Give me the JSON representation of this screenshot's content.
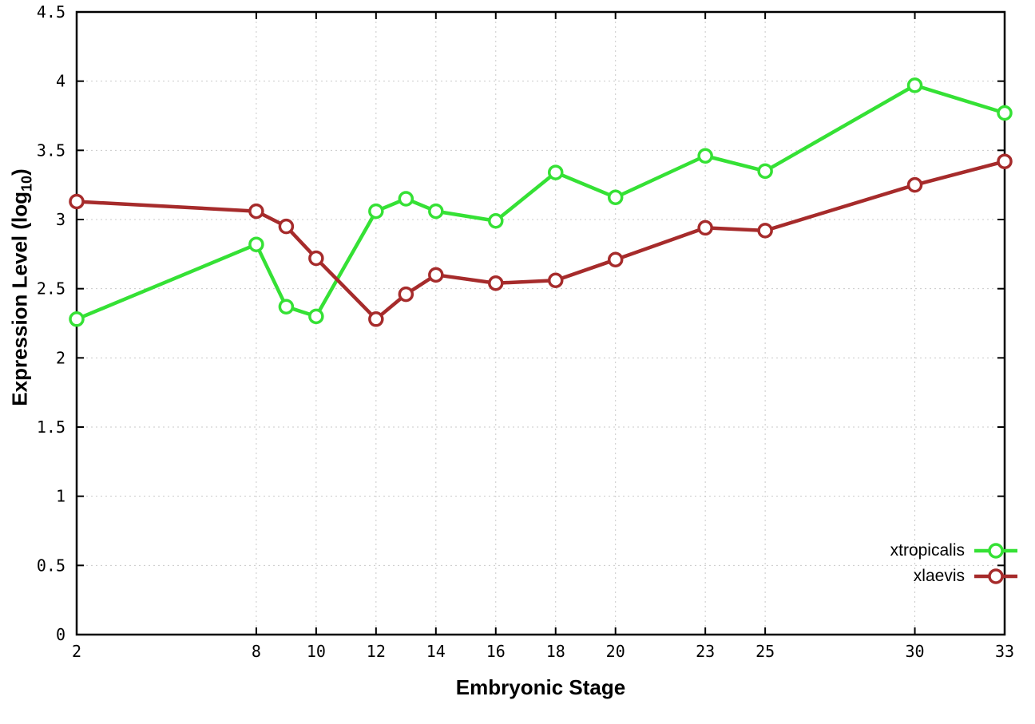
{
  "chart_data": {
    "type": "line",
    "title": "",
    "xlabel": "Embryonic Stage",
    "ylabel": "Expression Level (log10)",
    "ylabel_parts": {
      "prefix": "Expression Level (log",
      "sub": "10",
      "suffix": ")"
    },
    "xlim": [
      2,
      33
    ],
    "ylim": [
      0,
      4.5
    ],
    "grid": true,
    "legend_position": "bottom-right",
    "xticks": [
      2,
      8,
      10,
      12,
      14,
      16,
      18,
      20,
      23,
      25,
      30,
      33
    ],
    "xtick_labels": [
      "2",
      "8",
      "10",
      "12",
      "14",
      "16",
      "18",
      "20",
      "23",
      "25",
      "30",
      "33"
    ],
    "yticks": [
      0,
      0.5,
      1,
      1.5,
      2,
      2.5,
      3,
      3.5,
      4,
      4.5
    ],
    "ytick_labels": [
      "0",
      "0.5",
      "1",
      "1.5",
      "2",
      "2.5",
      "3",
      "3.5",
      "4",
      "4.5"
    ],
    "x": [
      2,
      8,
      9,
      10,
      12,
      13,
      14,
      16,
      18,
      20,
      23,
      25,
      30,
      33
    ],
    "series": [
      {
        "name": "xtropicalis",
        "color": "#35e135",
        "values": [
          2.28,
          2.82,
          2.37,
          2.3,
          3.06,
          3.15,
          3.06,
          2.99,
          3.34,
          3.16,
          3.46,
          3.35,
          3.97,
          3.77
        ]
      },
      {
        "name": "xlaevis",
        "color": "#a62b2b",
        "values": [
          3.13,
          3.06,
          2.95,
          2.72,
          2.28,
          2.46,
          2.6,
          2.54,
          2.56,
          2.71,
          2.94,
          2.92,
          3.25,
          3.42
        ]
      }
    ]
  }
}
